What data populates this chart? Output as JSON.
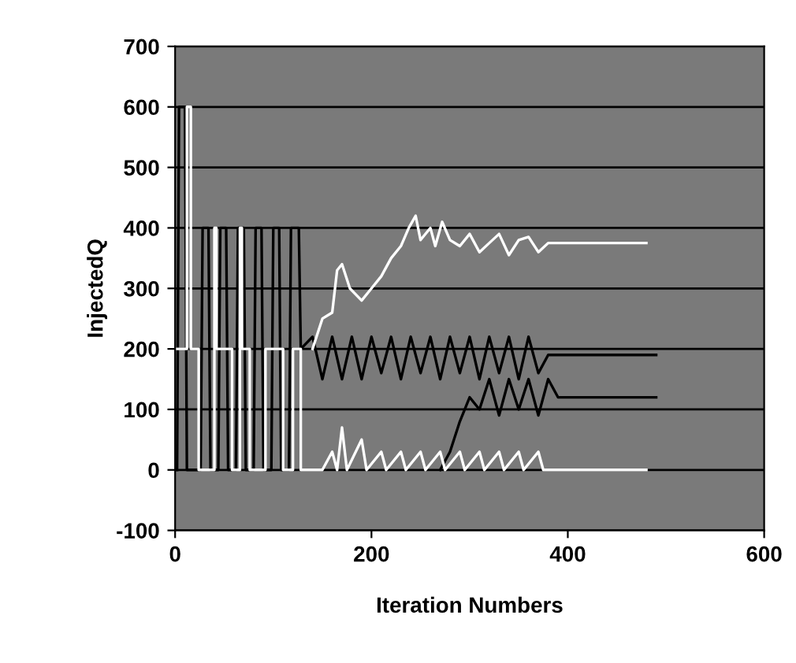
{
  "chart_data": {
    "type": "line",
    "xlabel": "Iteration Numbers",
    "ylabel": "InjectedQ",
    "xlim": [
      0,
      600
    ],
    "ylim": [
      -100,
      700
    ],
    "xticks": [
      0,
      200,
      400,
      600
    ],
    "yticks": [
      -100,
      0,
      100,
      200,
      300,
      400,
      500,
      600,
      700
    ],
    "grid": "y",
    "marker": "none",
    "line_style": "solid",
    "series": [
      {
        "color": "#000000",
        "x": [
          2,
          4,
          10,
          12,
          26,
          28,
          34,
          36,
          44,
          46,
          52,
          54,
          62,
          64,
          70,
          72,
          80,
          82,
          88,
          90,
          98,
          100,
          106,
          108,
          116,
          118,
          126,
          128,
          140,
          150,
          160,
          170,
          180,
          190,
          200,
          210,
          220,
          230,
          240,
          250,
          260,
          270,
          280,
          290,
          300,
          310,
          320,
          330,
          340,
          350,
          360,
          370,
          380,
          490
        ],
        "values": [
          0,
          600,
          600,
          0,
          0,
          400,
          400,
          0,
          0,
          400,
          400,
          0,
          0,
          400,
          400,
          0,
          0,
          400,
          400,
          0,
          0,
          400,
          400,
          0,
          0,
          400,
          400,
          200,
          220,
          150,
          220,
          150,
          220,
          150,
          220,
          160,
          220,
          150,
          220,
          160,
          220,
          150,
          220,
          160,
          220,
          150,
          220,
          160,
          220,
          150,
          220,
          160,
          190,
          190
        ]
      },
      {
        "color": "#000000",
        "x": [
          270,
          280,
          290,
          300,
          310,
          320,
          330,
          340,
          350,
          360,
          370,
          380,
          390,
          490
        ],
        "values": [
          0,
          30,
          80,
          120,
          100,
          150,
          90,
          150,
          100,
          150,
          90,
          150,
          120,
          120
        ]
      },
      {
        "color": "#ffffff",
        "x": [
          0,
          12,
          12,
          16,
          16,
          24,
          24,
          40,
          40,
          42,
          42,
          58,
          58,
          66,
          66,
          68,
          68,
          76,
          76,
          92,
          92,
          110,
          110,
          120,
          120,
          128,
          128,
          150,
          160,
          165,
          170,
          175,
          190,
          195,
          210,
          215,
          230,
          235,
          250,
          255,
          270,
          275,
          290,
          295,
          310,
          315,
          330,
          335,
          350,
          355,
          370,
          375,
          480
        ],
        "values": [
          200,
          200,
          600,
          600,
          200,
          200,
          0,
          0,
          400,
          400,
          200,
          200,
          0,
          0,
          400,
          400,
          200,
          200,
          0,
          0,
          200,
          200,
          0,
          0,
          200,
          200,
          0,
          0,
          30,
          0,
          70,
          0,
          50,
          0,
          30,
          0,
          30,
          0,
          30,
          0,
          30,
          0,
          30,
          0,
          30,
          0,
          30,
          0,
          30,
          0,
          30,
          0,
          0
        ]
      },
      {
        "color": "#ffffff",
        "x": [
          140,
          150,
          160,
          165,
          170,
          178,
          190,
          200,
          210,
          220,
          230,
          238,
          245,
          250,
          260,
          265,
          272,
          280,
          290,
          300,
          310,
          320,
          330,
          340,
          350,
          360,
          370,
          380,
          480
        ],
        "values": [
          200,
          250,
          260,
          330,
          340,
          300,
          280,
          300,
          320,
          350,
          370,
          400,
          420,
          380,
          400,
          370,
          410,
          380,
          370,
          390,
          360,
          375,
          390,
          355,
          380,
          385,
          360,
          375,
          375
        ]
      }
    ]
  }
}
